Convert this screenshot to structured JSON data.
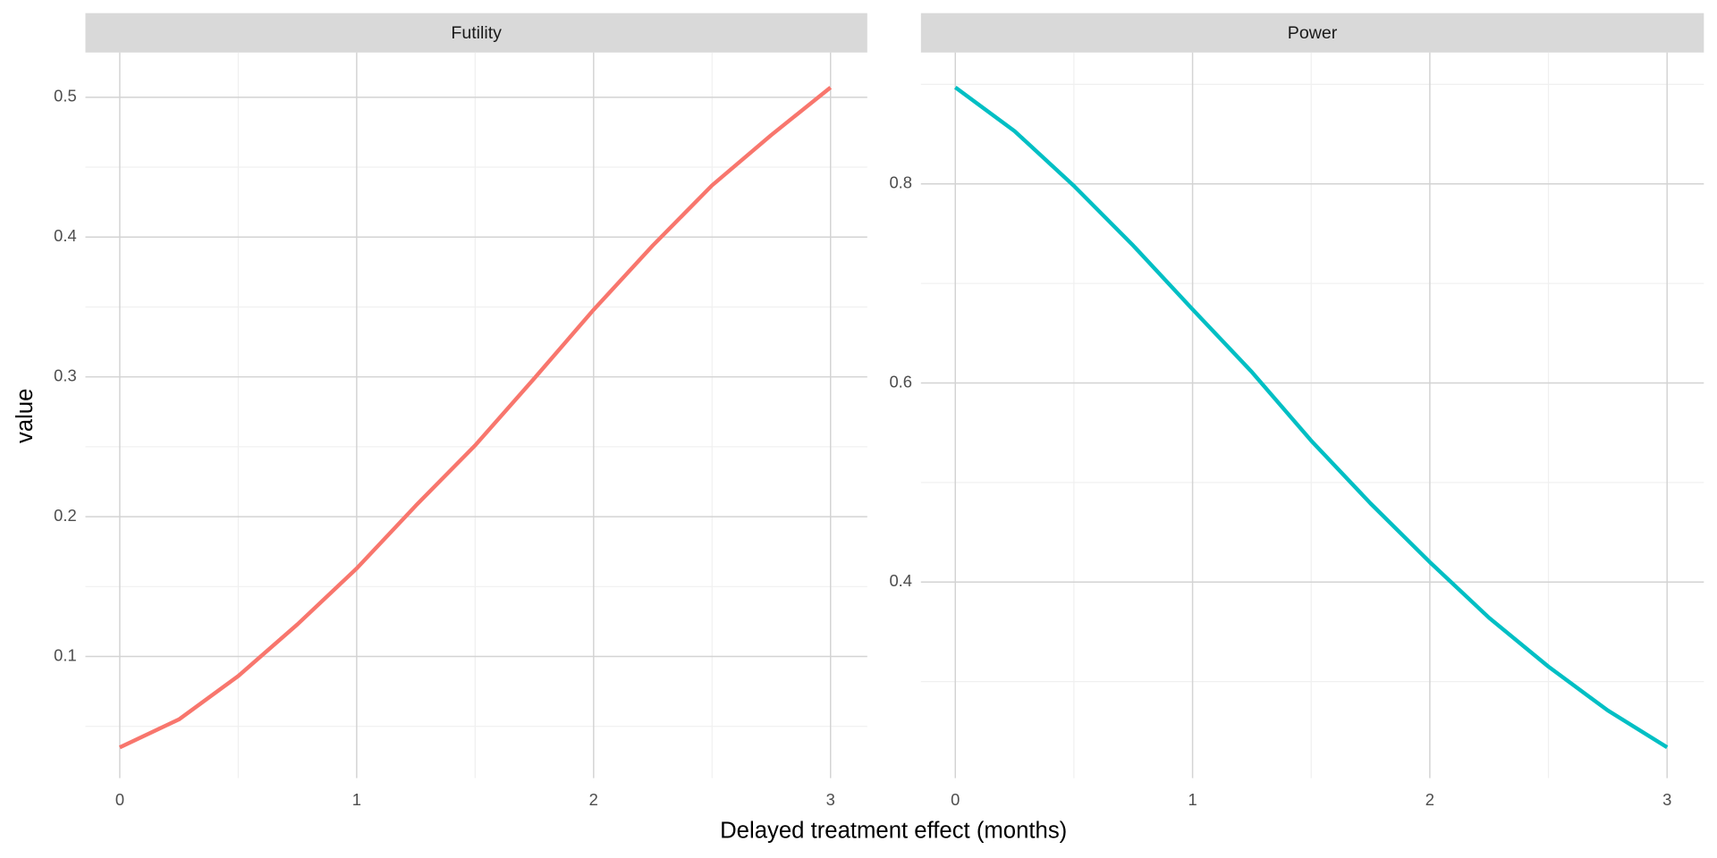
{
  "chart_data": [
    {
      "type": "line",
      "title": "Futility",
      "x_label": "Delayed treatment effect (months)",
      "y_label": "value",
      "x": [
        0,
        0.25,
        0.5,
        0.75,
        1,
        1.25,
        1.5,
        1.75,
        2,
        2.25,
        2.5,
        2.75,
        3
      ],
      "values": [
        0.035,
        0.055,
        0.086,
        0.123,
        0.163,
        0.208,
        0.251,
        0.299,
        0.348,
        0.394,
        0.437,
        0.473,
        0.507
      ],
      "color": "#f8766d",
      "xlim": [
        -0.145,
        3.155
      ],
      "xticks": [
        0,
        1,
        2,
        3
      ],
      "ylim": [
        0.013,
        0.532
      ],
      "yticks": [
        0.1,
        0.2,
        0.3,
        0.4,
        0.5
      ],
      "grid": true
    },
    {
      "type": "line",
      "title": "Power",
      "x": [
        0,
        0.25,
        0.5,
        0.75,
        1,
        1.25,
        1.5,
        1.75,
        2,
        2.25,
        2.5,
        2.75,
        3
      ],
      "values": [
        0.897,
        0.853,
        0.798,
        0.738,
        0.674,
        0.611,
        0.542,
        0.479,
        0.42,
        0.364,
        0.315,
        0.271,
        0.234
      ],
      "color": "#00bfc4",
      "xlim": [
        -0.145,
        3.155
      ],
      "xticks": [
        0,
        1,
        2,
        3
      ],
      "ylim": [
        0.203,
        0.932
      ],
      "yticks": [
        0.4,
        0.6,
        0.8
      ],
      "grid": true
    }
  ]
}
